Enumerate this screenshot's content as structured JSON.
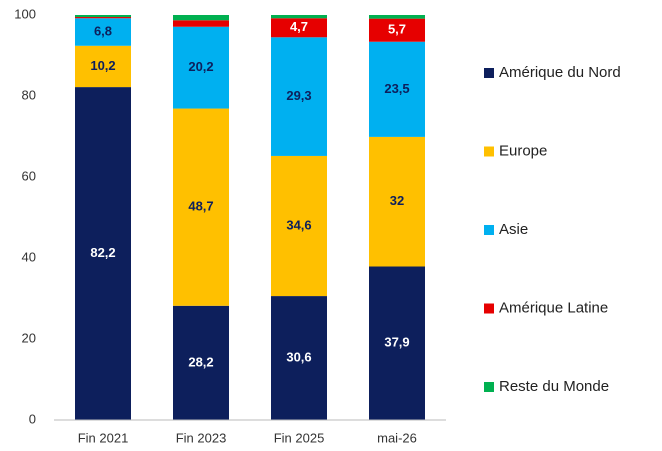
{
  "chart_data": {
    "type": "stacked_bar",
    "categories": [
      "Fin 2021",
      "Fin 2023",
      "Fin 2025",
      "mai-26"
    ],
    "series": [
      {
        "name": "Amérique du Nord",
        "color": "#0d1f5c",
        "values": [
          82.2,
          28.2,
          30.6,
          37.9
        ],
        "value_labels": [
          "82,2",
          "28,2",
          "30,6",
          "37,9"
        ]
      },
      {
        "name": "Europe",
        "color": "#ffc000",
        "values": [
          10.2,
          48.7,
          34.6,
          32
        ],
        "value_labels": [
          "10,2",
          "48,7",
          "34,6",
          "32"
        ]
      },
      {
        "name": "Asie",
        "color": "#00b0f0",
        "values": [
          6.8,
          20.2,
          29.3,
          23.5
        ],
        "value_labels": [
          "6,8",
          "20,2",
          "29,3",
          "23,5"
        ]
      },
      {
        "name": "Amérique Latine",
        "color": "#e60000",
        "values": [
          0.3,
          1.6,
          4.7,
          5.7
        ],
        "value_labels": [
          null,
          null,
          "4,7",
          "5,7"
        ]
      },
      {
        "name": "Reste du Monde",
        "color": "#00b050",
        "values": [
          0.5,
          1.3,
          0.8,
          0.9
        ],
        "value_labels": [
          null,
          null,
          null,
          null
        ]
      }
    ],
    "ylim": [
      0,
      100
    ],
    "yticks": [
      0,
      20,
      40,
      60,
      80,
      100
    ],
    "grid": false,
    "legend": "right"
  }
}
